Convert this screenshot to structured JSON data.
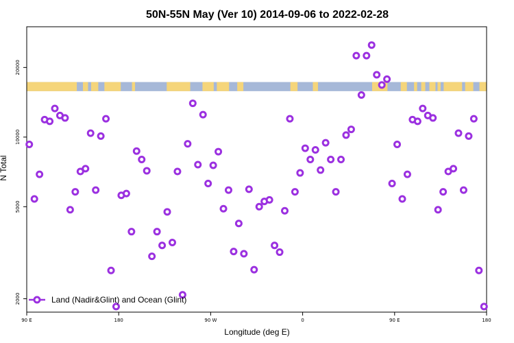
{
  "chart_data": {
    "type": "scatter",
    "title": "50N-55N May (Ver 10)   2014-09-06 to 2022-02-28",
    "xlabel": "Longitude (deg E)",
    "ylabel": "N Total",
    "x_ticks": [
      {
        "value": 90,
        "label": "90 E"
      },
      {
        "value": 180,
        "label": "180"
      },
      {
        "value": 270,
        "label": "90 W"
      },
      {
        "value": 360,
        "label": "0"
      },
      {
        "value": 450,
        "label": "90 E"
      },
      {
        "value": 540,
        "label": "180"
      }
    ],
    "y_ticks": [
      2000,
      5000,
      10000,
      20000
    ],
    "xlim": [
      90,
      540
    ],
    "ylim": [
      1750,
      30000
    ],
    "y_scale": "log",
    "grid": false,
    "legend_position": "bottom-left",
    "series": [
      {
        "name": "Land (Nadir&Glint) and Ocean (Glint)",
        "color": "#9b30e0",
        "points": [
          [
            92.5,
            9300
          ],
          [
            97.5,
            5400
          ],
          [
            102.5,
            6900
          ],
          [
            107.5,
            11900
          ],
          [
            112.5,
            11700
          ],
          [
            117.5,
            13300
          ],
          [
            122.5,
            12400
          ],
          [
            127.5,
            12100
          ],
          [
            132.5,
            4850
          ],
          [
            137.5,
            5800
          ],
          [
            142.5,
            7100
          ],
          [
            147.5,
            7300
          ],
          [
            152.5,
            10400
          ],
          [
            157.5,
            5900
          ],
          [
            162.5,
            10100
          ],
          [
            167.5,
            12000
          ],
          [
            172.5,
            2650
          ],
          [
            177.5,
            1850
          ],
          [
            182.5,
            5600
          ],
          [
            187.5,
            5700
          ],
          [
            192.5,
            3900
          ],
          [
            197.5,
            8700
          ],
          [
            202.5,
            8000
          ],
          [
            207.5,
            7150
          ],
          [
            212.5,
            3050
          ],
          [
            217.5,
            3900
          ],
          [
            222.5,
            3400
          ],
          [
            227.5,
            4750
          ],
          [
            232.5,
            3500
          ],
          [
            237.5,
            7100
          ],
          [
            242.5,
            2080
          ],
          [
            247.5,
            9350
          ],
          [
            252.5,
            14000
          ],
          [
            257.5,
            7600
          ],
          [
            262.5,
            12500
          ],
          [
            267.5,
            6300
          ],
          [
            272.5,
            7550
          ],
          [
            277.5,
            8650
          ],
          [
            282.5,
            4900
          ],
          [
            287.5,
            5900
          ],
          [
            292.5,
            3200
          ],
          [
            297.5,
            4230
          ],
          [
            302.5,
            3130
          ],
          [
            307.5,
            5950
          ],
          [
            312.5,
            2670
          ],
          [
            317.5,
            5000
          ],
          [
            322.5,
            5270
          ],
          [
            327.5,
            5350
          ],
          [
            332.5,
            3400
          ],
          [
            337.5,
            3180
          ],
          [
            342.5,
            4800
          ],
          [
            347.5,
            12000
          ],
          [
            352.5,
            5800
          ],
          [
            357.5,
            7000
          ],
          [
            362.5,
            8950
          ],
          [
            367.5,
            8000
          ],
          [
            372.5,
            8800
          ],
          [
            377.5,
            7200
          ],
          [
            382.5,
            9450
          ],
          [
            387.5,
            8000
          ],
          [
            392.5,
            5800
          ],
          [
            397.5,
            8000
          ],
          [
            402.5,
            10200
          ],
          [
            407.5,
            10800
          ],
          [
            412.5,
            22500
          ],
          [
            417.5,
            15200
          ],
          [
            422.5,
            22500
          ],
          [
            427.5,
            25000
          ],
          [
            432.5,
            18600
          ],
          [
            437.5,
            16800
          ],
          [
            442.5,
            17800
          ],
          [
            447.5,
            6300
          ],
          [
            452.5,
            9300
          ],
          [
            457.5,
            5400
          ],
          [
            462.5,
            6900
          ],
          [
            467.5,
            11900
          ],
          [
            472.5,
            11700
          ],
          [
            477.5,
            13300
          ],
          [
            482.5,
            12400
          ],
          [
            487.5,
            12100
          ],
          [
            492.5,
            4850
          ],
          [
            497.5,
            5800
          ],
          [
            502.5,
            7100
          ],
          [
            507.5,
            7300
          ],
          [
            512.5,
            10400
          ],
          [
            517.5,
            5900
          ],
          [
            522.5,
            10100
          ],
          [
            527.5,
            12000
          ],
          [
            532.5,
            2650
          ],
          [
            537.5,
            1850
          ]
        ]
      }
    ],
    "coverage_band": {
      "y_range": [
        15800,
        17300
      ],
      "land_color": "#f5d57a",
      "ocean_color": "#a6b8d8",
      "land_intervals": [
        [
          90,
          139
        ],
        [
          145,
          150
        ],
        [
          153,
          160
        ],
        [
          166,
          182
        ],
        [
          193,
          196
        ],
        [
          227,
          250
        ],
        [
          262,
          273
        ],
        [
          276,
          288
        ],
        [
          296,
          302
        ],
        [
          348,
          355
        ],
        [
          370,
          375
        ],
        [
          428,
          443
        ],
        [
          456,
          462
        ],
        [
          469,
          472
        ],
        [
          476,
          480
        ],
        [
          484,
          490
        ],
        [
          492,
          495
        ],
        [
          498,
          516
        ],
        [
          519,
          527
        ],
        [
          533,
          540
        ]
      ]
    }
  }
}
